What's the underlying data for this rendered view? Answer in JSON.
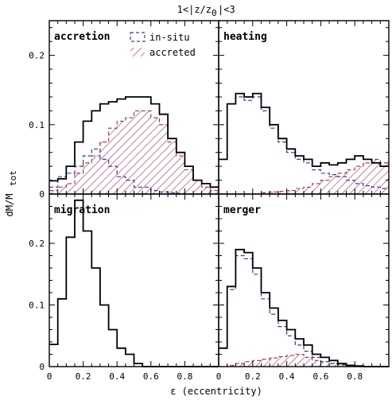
{
  "figure": {
    "suptitle": "1<|z/z",
    "suptitle_sub": "0",
    "suptitle_tail": "|<3",
    "xlabel": "ε (eccentricity)",
    "ylabel_main": "dM/M",
    "ylabel_sub": "tot"
  },
  "legend": {
    "insitu_label": "in-situ",
    "accreted_label": "accreted"
  },
  "colors": {
    "total": "#000000",
    "insitu": "#3b3f8f",
    "accreted": "#9e3050"
  },
  "chart_data": [
    {
      "type": "step-histogram",
      "panel_label": "accretion",
      "bin_edges": [
        0,
        0.05,
        0.1,
        0.15,
        0.2,
        0.25,
        0.3,
        0.35,
        0.4,
        0.45,
        0.5,
        0.55,
        0.6,
        0.65,
        0.7,
        0.75,
        0.8,
        0.85,
        0.9,
        0.95,
        1.0
      ],
      "series": [
        {
          "name": "",
          "style": "solid",
          "values": [
            0.019,
            0.022,
            0.04,
            0.075,
            0.105,
            0.12,
            0.13,
            0.133,
            0.137,
            0.14,
            0.14,
            0.14,
            0.13,
            0.115,
            0.08,
            0.06,
            0.04,
            0.02,
            0.015,
            0.01
          ]
        },
        {
          "name": "in-situ",
          "style": "dashed",
          "values": [
            0.01,
            0.025,
            0.03,
            0.04,
            0.055,
            0.065,
            0.05,
            0.04,
            0.025,
            0.02,
            0.01,
            0.01,
            0.005,
            0.003,
            0.002,
            0.001,
            0,
            0,
            0,
            0
          ]
        },
        {
          "name": "accreted",
          "style": "hatched",
          "values": [
            0.005,
            0.01,
            0.015,
            0.03,
            0.045,
            0.055,
            0.075,
            0.095,
            0.105,
            0.11,
            0.12,
            0.12,
            0.11,
            0.1,
            0.075,
            0.055,
            0.035,
            0.02,
            0.01,
            0.005
          ]
        }
      ],
      "xlim": [
        0,
        1.0
      ],
      "ylim": [
        0,
        0.25
      ],
      "xticks": [
        0,
        0.2,
        0.4,
        0.6,
        0.8
      ],
      "yticks": [
        0,
        0.1,
        0.2
      ],
      "ytick_labels": [
        "0",
        "0.1",
        "0.2"
      ],
      "xtick_labels": [],
      "show_ylabels": true,
      "show_xlabels": false
    },
    {
      "type": "step-histogram",
      "panel_label": "heating",
      "bin_edges": [
        0,
        0.05,
        0.1,
        0.15,
        0.2,
        0.25,
        0.3,
        0.35,
        0.4,
        0.45,
        0.5,
        0.55,
        0.6,
        0.65,
        0.7,
        0.75,
        0.8,
        0.85,
        0.9,
        0.95,
        1.0
      ],
      "series": [
        {
          "name": "",
          "style": "solid",
          "values": [
            0.05,
            0.13,
            0.145,
            0.14,
            0.145,
            0.125,
            0.1,
            0.08,
            0.065,
            0.055,
            0.05,
            0.04,
            0.045,
            0.042,
            0.045,
            0.05,
            0.055,
            0.05,
            0.045,
            0.04
          ]
        },
        {
          "name": "in-situ",
          "style": "dashed",
          "values": [
            0.05,
            0.13,
            0.14,
            0.135,
            0.14,
            0.12,
            0.095,
            0.075,
            0.06,
            0.05,
            0.045,
            0.035,
            0.03,
            0.028,
            0.025,
            0.02,
            0.015,
            0.012,
            0.01,
            0.008
          ]
        },
        {
          "name": "accreted",
          "style": "hatched",
          "values": [
            0,
            0,
            0,
            0,
            0,
            0.002,
            0.003,
            0.004,
            0.005,
            0.008,
            0.01,
            0.015,
            0.02,
            0.025,
            0.03,
            0.035,
            0.04,
            0.045,
            0.05,
            0.045
          ]
        }
      ],
      "xlim": [
        0,
        1.0
      ],
      "ylim": [
        0,
        0.25
      ],
      "xticks": [
        0,
        0.2,
        0.4,
        0.6,
        0.8
      ],
      "yticks": [
        0,
        0.1,
        0.2
      ],
      "ytick_labels": [],
      "xtick_labels": [],
      "show_ylabels": false,
      "show_xlabels": false
    },
    {
      "type": "step-histogram",
      "panel_label": "migration",
      "bin_edges": [
        0,
        0.05,
        0.1,
        0.15,
        0.2,
        0.25,
        0.3,
        0.35,
        0.4,
        0.45,
        0.5,
        0.55,
        0.6,
        0.65,
        0.7,
        0.75,
        0.8,
        0.85,
        0.9,
        0.95,
        1.0
      ],
      "series": [
        {
          "name": "",
          "style": "solid",
          "values": [
            0.036,
            0.11,
            0.21,
            0.27,
            0.22,
            0.16,
            0.1,
            0.06,
            0.03,
            0.02,
            0.005,
            0,
            0,
            0,
            0,
            0,
            0,
            0,
            0,
            0
          ]
        }
      ],
      "xlim": [
        0,
        1.0
      ],
      "ylim": [
        0,
        0.28
      ],
      "xticks": [
        0,
        0.2,
        0.4,
        0.6,
        0.8
      ],
      "yticks": [
        0,
        0.1,
        0.2
      ],
      "ytick_labels": [
        "0",
        "0.1",
        "0.2"
      ],
      "xtick_labels": [
        "0",
        "0.2",
        "0.4",
        "0.6",
        "0.8"
      ],
      "show_ylabels": true,
      "show_xlabels": true
    },
    {
      "type": "step-histogram",
      "panel_label": "merger",
      "bin_edges": [
        0,
        0.05,
        0.1,
        0.15,
        0.2,
        0.25,
        0.3,
        0.35,
        0.4,
        0.45,
        0.5,
        0.55,
        0.6,
        0.65,
        0.7,
        0.75,
        0.8,
        0.85,
        0.9,
        0.95,
        1.0
      ],
      "series": [
        {
          "name": "",
          "style": "solid",
          "values": [
            0.03,
            0.13,
            0.19,
            0.185,
            0.16,
            0.12,
            0.095,
            0.075,
            0.06,
            0.045,
            0.035,
            0.02,
            0.015,
            0.01,
            0.005,
            0.002,
            0.001,
            0,
            0,
            0
          ]
        },
        {
          "name": "in-situ",
          "style": "dashed",
          "values": [
            0.03,
            0.125,
            0.18,
            0.175,
            0.15,
            0.11,
            0.085,
            0.065,
            0.05,
            0.035,
            0.025,
            0.015,
            0.008,
            0.005,
            0.003,
            0.001,
            0,
            0,
            0,
            0
          ]
        },
        {
          "name": "accreted",
          "style": "hatched",
          "values": [
            0,
            0.002,
            0.005,
            0.008,
            0.01,
            0.012,
            0.014,
            0.016,
            0.018,
            0.02,
            0.015,
            0.01,
            0.008,
            0.005,
            0.003,
            0.002,
            0.001,
            0,
            0,
            0
          ]
        }
      ],
      "xlim": [
        0,
        1.0
      ],
      "ylim": [
        0,
        0.28
      ],
      "xticks": [
        0,
        0.2,
        0.4,
        0.6,
        0.8
      ],
      "yticks": [
        0,
        0.1,
        0.2
      ],
      "ytick_labels": [],
      "xtick_labels": [
        "0",
        "0.2",
        "0.4",
        "0.6",
        "0.8"
      ],
      "show_ylabels": false,
      "show_xlabels": true
    }
  ]
}
